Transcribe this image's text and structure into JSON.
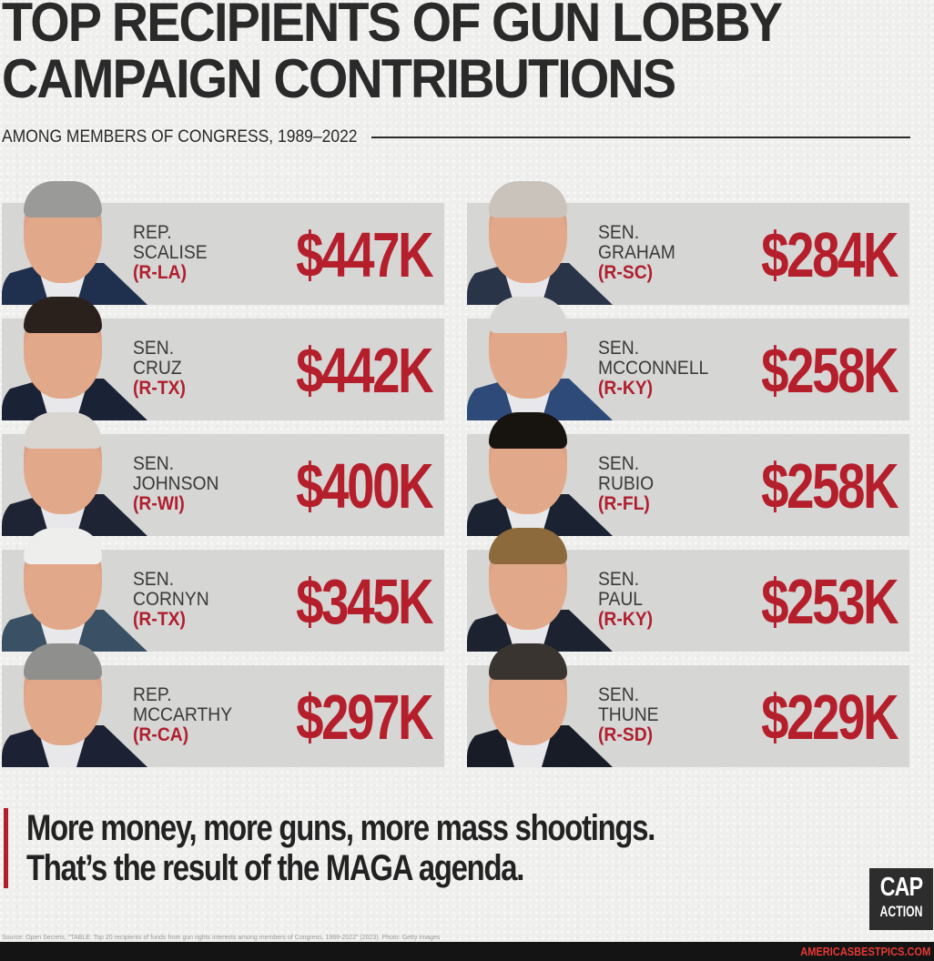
{
  "header": {
    "title_line1": "TOP RECIPIENTS OF GUN LOBBY",
    "title_line2": "CAMPAIGN CONTRIBUTIONS",
    "subtitle": "AMONG MEMBERS OF CONGRESS, 1989–2022"
  },
  "recipients": [
    {
      "title": "REP.",
      "name": "SCALISE",
      "party": "(R-LA)",
      "amount": "$447K",
      "hair": "#9a9a98",
      "suit": "#1f2f4e"
    },
    {
      "title": "SEN.",
      "name": "CRUZ",
      "party": "(R-TX)",
      "amount": "$442K",
      "hair": "#2a211c",
      "suit": "#1a2236"
    },
    {
      "title": "SEN.",
      "name": "JOHNSON",
      "party": "(R-WI)",
      "amount": "$400K",
      "hair": "#d9d6d2",
      "suit": "#1e2433"
    },
    {
      "title": "SEN.",
      "name": "CORNYN",
      "party": "(R-TX)",
      "amount": "$345K",
      "hair": "#eeeeec",
      "suit": "#3a5064"
    },
    {
      "title": "REP.",
      "name": "MCCARTHY",
      "party": "(R-CA)",
      "amount": "$297K",
      "hair": "#8f8f8d",
      "suit": "#1c2233"
    },
    {
      "title": "SEN.",
      "name": "GRAHAM",
      "party": "(R-SC)",
      "amount": "$284K",
      "hair": "#c9c3bb",
      "suit": "#2a3448"
    },
    {
      "title": "SEN.",
      "name": "MCCONNELL",
      "party": "(R-KY)",
      "amount": "$258K",
      "hair": "#d6d6d4",
      "suit": "#2d4a78"
    },
    {
      "title": "SEN.",
      "name": "RUBIO",
      "party": "(R-FL)",
      "amount": "$258K",
      "hair": "#17130f",
      "suit": "#1b2232"
    },
    {
      "title": "SEN.",
      "name": "PAUL",
      "party": "(R-KY)",
      "amount": "$253K",
      "hair": "#8c6a3c",
      "suit": "#1d2230"
    },
    {
      "title": "SEN.",
      "name": "THUNE",
      "party": "(R-SD)",
      "amount": "$229K",
      "hair": "#3a3430",
      "suit": "#181c26"
    }
  ],
  "tagline": {
    "line1": "More money, more guns, more mass shootings.",
    "line2": "That’s the result of the MAGA agenda."
  },
  "logo": {
    "line1": "CAP",
    "line2": "ACTION"
  },
  "source": "Source: Open Secrets, \"TABLE: Top 20 recipients of funds from gun rights interests among members of Congress, 1989-2022\" (2023). Photo: Getty Images",
  "watermark": "AMERICASBESTPICS.COM",
  "colors": {
    "accent_red": "#b51f2c",
    "card_gray": "#d6d6d5",
    "text_dark": "#2a2a2a",
    "footer_bg": "#141414",
    "watermark_red": "#e53935"
  },
  "chart_data": {
    "type": "bar",
    "title": "Top Recipients of Gun Lobby Campaign Contributions",
    "subtitle": "Among Members of Congress, 1989–2022",
    "categories": [
      "Rep. Scalise (R-LA)",
      "Sen. Cruz (R-TX)",
      "Sen. Johnson (R-WI)",
      "Sen. Cornyn (R-TX)",
      "Rep. McCarthy (R-CA)",
      "Sen. Graham (R-SC)",
      "Sen. McConnell (R-KY)",
      "Sen. Rubio (R-FL)",
      "Sen. Paul (R-KY)",
      "Sen. Thune (R-SD)"
    ],
    "values": [
      447,
      442,
      400,
      345,
      297,
      284,
      258,
      258,
      253,
      229
    ],
    "unit": "thousands USD",
    "xlabel": "",
    "ylabel": "Contributions ($K)"
  }
}
